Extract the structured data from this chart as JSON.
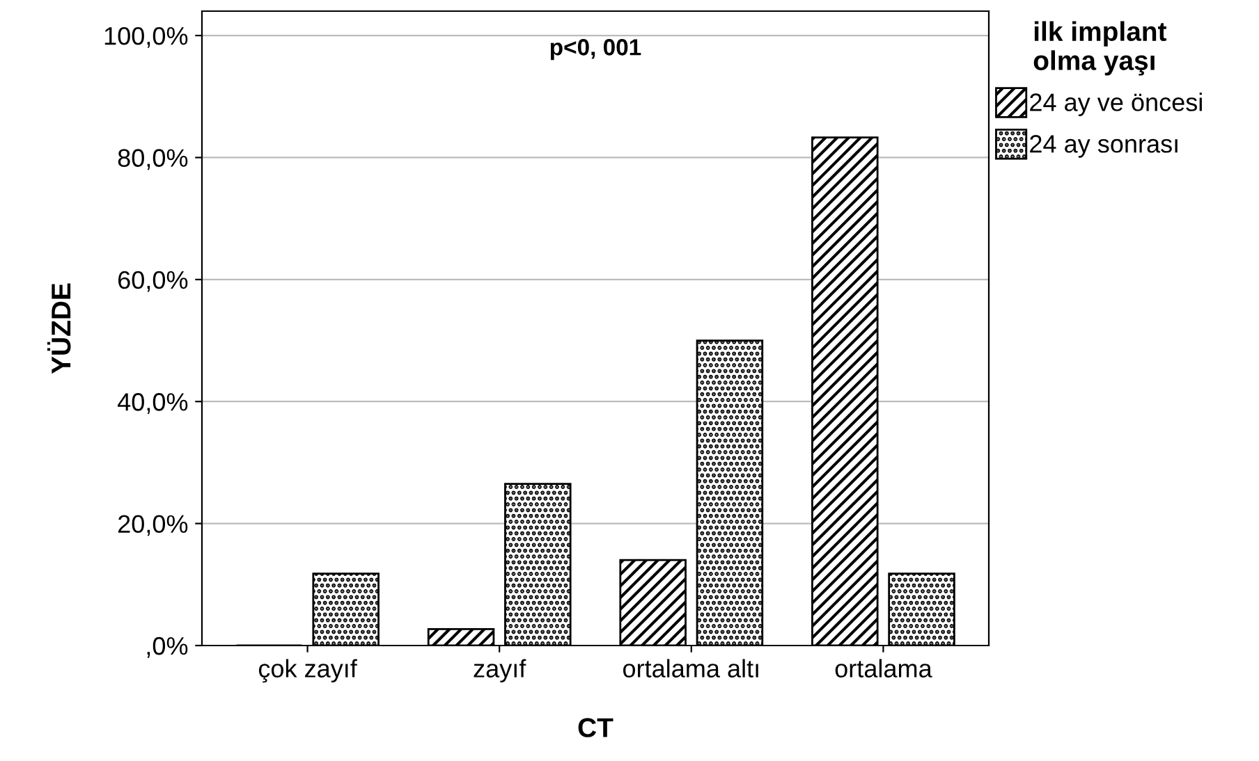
{
  "chart_data": {
    "type": "bar",
    "xlabel": "CT",
    "ylabel": "YÜZDE",
    "legend_title": "ilk implant\nolma yaşı",
    "categories": [
      "çok zayıf",
      "zayıf",
      "ortalama altı",
      "ortalama"
    ],
    "series": [
      {
        "name": "24 ay ve öncesi",
        "color": "#000000",
        "values": [
          0,
          2.7,
          14.0,
          83.3
        ]
      },
      {
        "name": "24 ay sonrası",
        "color": "#000000",
        "values": [
          11.8,
          26.5,
          50.0,
          11.8
        ]
      }
    ],
    "ylim": [
      0,
      104
    ],
    "yticks": [
      {
        "value": 0,
        "label": ",0%"
      },
      {
        "value": 20,
        "label": "20,0%"
      },
      {
        "value": 40,
        "label": "40,0%"
      },
      {
        "value": 60,
        "label": "60,0%"
      },
      {
        "value": 80,
        "label": "80,0%"
      },
      {
        "value": 100,
        "label": "100,0%"
      }
    ],
    "grid": "y",
    "legend": "top right",
    "annotations": [
      "p<0, 001"
    ]
  }
}
